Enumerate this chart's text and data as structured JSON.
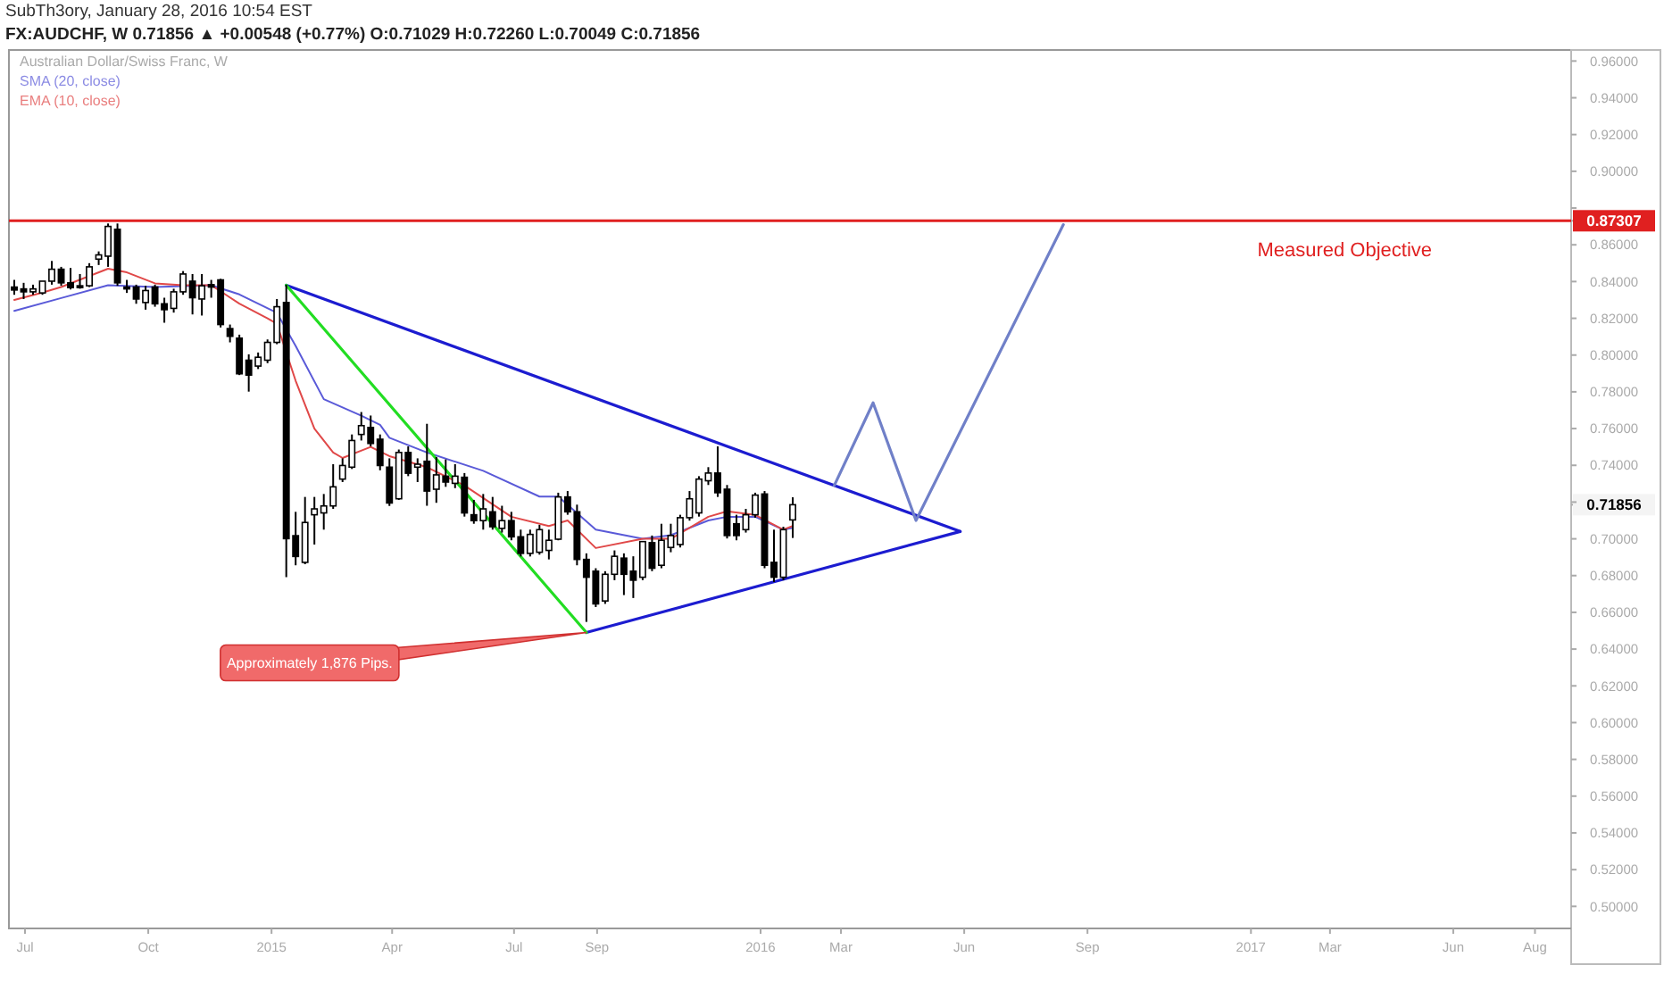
{
  "chart_data": {
    "type": "candlestick",
    "title": "SubTh3ory, January 28, 2016 10:54 EST",
    "subtitle": "FX:AUDCHF, W 0.71856 ▲ +0.00548 (+0.77%) O:0.71029 H:0.72260 L:0.70049 C:0.71856",
    "legend_title": "Australian Dollar/Swiss Franc, W",
    "legend": "top left",
    "grid": false,
    "line_style": "solid",
    "x": [
      "2014-06-23",
      "2014-06-30",
      "2014-07-07",
      "2014-07-14",
      "2014-07-21",
      "2014-07-28",
      "2014-08-04",
      "2014-08-11",
      "2014-08-18",
      "2014-08-25",
      "2014-09-01",
      "2014-09-08",
      "2014-09-15",
      "2014-09-22",
      "2014-09-29",
      "2014-10-06",
      "2014-10-13",
      "2014-10-20",
      "2014-10-27",
      "2014-11-03",
      "2014-11-10",
      "2014-11-17",
      "2014-11-24",
      "2014-12-01",
      "2014-12-08",
      "2014-12-15",
      "2014-12-22",
      "2014-12-29",
      "2015-01-05",
      "2015-01-12",
      "2015-01-19",
      "2015-01-26",
      "2015-02-02",
      "2015-02-09",
      "2015-02-16",
      "2015-02-23",
      "2015-03-02",
      "2015-03-09",
      "2015-03-16",
      "2015-03-23",
      "2015-03-30",
      "2015-04-06",
      "2015-04-13",
      "2015-04-20",
      "2015-04-27",
      "2015-05-04",
      "2015-05-11",
      "2015-05-18",
      "2015-05-25",
      "2015-06-01",
      "2015-06-08",
      "2015-06-15",
      "2015-06-22",
      "2015-06-29",
      "2015-07-06",
      "2015-07-13",
      "2015-07-20",
      "2015-07-27",
      "2015-08-03",
      "2015-08-10",
      "2015-08-17",
      "2015-08-24",
      "2015-08-31",
      "2015-09-07",
      "2015-09-14",
      "2015-09-21",
      "2015-09-28",
      "2015-10-05",
      "2015-10-12",
      "2015-10-19",
      "2015-10-26",
      "2015-11-02",
      "2015-11-09",
      "2015-11-16",
      "2015-11-23",
      "2015-11-30",
      "2015-12-07",
      "2015-12-14",
      "2015-12-21",
      "2015-12-28",
      "2016-01-04",
      "2016-01-11",
      "2016-01-18",
      "2016-01-25"
    ],
    "ohlc": [
      [
        0.837,
        0.8409,
        0.8328,
        0.8354
      ],
      [
        0.836,
        0.8393,
        0.8305,
        0.8344
      ],
      [
        0.8344,
        0.8383,
        0.8328,
        0.836
      ],
      [
        0.8338,
        0.8402,
        0.8328,
        0.8402
      ],
      [
        0.8402,
        0.8512,
        0.8383,
        0.8467
      ],
      [
        0.8467,
        0.848,
        0.8377,
        0.8393
      ],
      [
        0.8393,
        0.8474,
        0.8357,
        0.8367
      ],
      [
        0.8377,
        0.8441,
        0.8361,
        0.8367
      ],
      [
        0.8377,
        0.85,
        0.837,
        0.848
      ],
      [
        0.8522,
        0.8564,
        0.849,
        0.8545
      ],
      [
        0.8538,
        0.8716,
        0.848,
        0.87
      ],
      [
        0.8684,
        0.8716,
        0.8377,
        0.8393
      ],
      [
        0.837,
        0.8409,
        0.8338,
        0.836
      ],
      [
        0.837,
        0.8383,
        0.8279,
        0.8305
      ],
      [
        0.8286,
        0.8377,
        0.8247,
        0.8351
      ],
      [
        0.837,
        0.8383,
        0.8263,
        0.8279
      ],
      [
        0.8279,
        0.8312,
        0.8176,
        0.8247
      ],
      [
        0.8254,
        0.8361,
        0.8231,
        0.8344
      ],
      [
        0.8344,
        0.8457,
        0.8328,
        0.8441
      ],
      [
        0.8402,
        0.8441,
        0.8221,
        0.8312
      ],
      [
        0.8305,
        0.8441,
        0.8215,
        0.8377
      ],
      [
        0.8383,
        0.8409,
        0.8312,
        0.837
      ],
      [
        0.8409,
        0.8415,
        0.815,
        0.8166
      ],
      [
        0.8144,
        0.8166,
        0.8069,
        0.8102
      ],
      [
        0.8092,
        0.8111,
        0.7891,
        0.7898
      ],
      [
        0.7972,
        0.8004,
        0.7801,
        0.7891
      ],
      [
        0.794,
        0.8014,
        0.7924,
        0.7988
      ],
      [
        0.7972,
        0.8085,
        0.7956,
        0.8069
      ],
      [
        0.8069,
        0.8305,
        0.8059,
        0.8263
      ],
      [
        0.8286,
        0.8383,
        0.6791,
        0.7001
      ],
      [
        0.7017,
        0.7147,
        0.6856,
        0.6904
      ],
      [
        0.6872,
        0.7228,
        0.6862,
        0.7089
      ],
      [
        0.7131,
        0.7228,
        0.6969,
        0.7163
      ],
      [
        0.7141,
        0.7244,
        0.705,
        0.7179
      ],
      [
        0.7179,
        0.7406,
        0.7163,
        0.7283
      ],
      [
        0.7325,
        0.7438,
        0.7309,
        0.7399
      ],
      [
        0.739,
        0.7568,
        0.738,
        0.7535
      ],
      [
        0.7568,
        0.769,
        0.7535,
        0.7616
      ],
      [
        0.7606,
        0.7671,
        0.7503,
        0.7519
      ],
      [
        0.7542,
        0.7568,
        0.7373,
        0.7399
      ],
      [
        0.739,
        0.7438,
        0.7179,
        0.7195
      ],
      [
        0.7218,
        0.7486,
        0.7212,
        0.747
      ],
      [
        0.747,
        0.7503,
        0.7341,
        0.7357
      ],
      [
        0.739,
        0.7438,
        0.7309,
        0.7406
      ],
      [
        0.7422,
        0.7626,
        0.718,
        0.726
      ],
      [
        0.727,
        0.7445,
        0.7196,
        0.7348
      ],
      [
        0.7341,
        0.7432,
        0.7283,
        0.7309
      ],
      [
        0.7302,
        0.7406,
        0.7276,
        0.7341
      ],
      [
        0.7335,
        0.7358,
        0.7121,
        0.7141
      ],
      [
        0.7131,
        0.7212,
        0.7082,
        0.7099
      ],
      [
        0.7099,
        0.7244,
        0.705,
        0.7163
      ],
      [
        0.7147,
        0.7228,
        0.705,
        0.7066
      ],
      [
        0.7057,
        0.718,
        0.7034,
        0.7099
      ],
      [
        0.7099,
        0.7147,
        0.6992,
        0.7011
      ],
      [
        0.7011,
        0.705,
        0.6904,
        0.6921
      ],
      [
        0.6921,
        0.705,
        0.6904,
        0.7024
      ],
      [
        0.6927,
        0.7076,
        0.6914,
        0.705
      ],
      [
        0.6937,
        0.705,
        0.6888,
        0.6992
      ],
      [
        0.6998,
        0.7251,
        0.6992,
        0.7228
      ],
      [
        0.7228,
        0.726,
        0.7131,
        0.7147
      ],
      [
        0.7147,
        0.7186,
        0.6856,
        0.6888
      ],
      [
        0.6888,
        0.6921,
        0.6548,
        0.6791
      ],
      [
        0.6824,
        0.684,
        0.6629,
        0.6646
      ],
      [
        0.6662,
        0.6824,
        0.6646,
        0.6807
      ],
      [
        0.6807,
        0.6937,
        0.6775,
        0.6905
      ],
      [
        0.6895,
        0.6921,
        0.6694,
        0.6807
      ],
      [
        0.6824,
        0.6905,
        0.6678,
        0.6775
      ],
      [
        0.6791,
        0.6985,
        0.6775,
        0.6985
      ],
      [
        0.6979,
        0.7018,
        0.6824,
        0.684
      ],
      [
        0.6856,
        0.7082,
        0.684,
        0.6992
      ],
      [
        0.6953,
        0.7082,
        0.6927,
        0.7018
      ],
      [
        0.6969,
        0.7131,
        0.6953,
        0.7115
      ],
      [
        0.7115,
        0.726,
        0.7099,
        0.7218
      ],
      [
        0.7141,
        0.7341,
        0.7121,
        0.7325
      ],
      [
        0.7316,
        0.739,
        0.7293,
        0.7358
      ],
      [
        0.7358,
        0.7503,
        0.7228,
        0.7251
      ],
      [
        0.727,
        0.7293,
        0.7002,
        0.7018
      ],
      [
        0.7082,
        0.7131,
        0.6992,
        0.7018
      ],
      [
        0.705,
        0.7163,
        0.7034,
        0.7131
      ],
      [
        0.7131,
        0.7251,
        0.7115,
        0.7238
      ],
      [
        0.7244,
        0.726,
        0.684,
        0.6856
      ],
      [
        0.6872,
        0.705,
        0.6765,
        0.6791
      ],
      [
        0.6791,
        0.7066,
        0.6775,
        0.705
      ],
      [
        0.71029,
        0.7226,
        0.70049,
        0.71856
      ]
    ],
    "series": [
      {
        "type": "line",
        "name": "SMA (20, close)",
        "color": "#5a5ad8",
        "x": [
          "2014-06-23",
          "2014-07-28",
          "2014-09-01",
          "2014-10-06",
          "2014-11-17",
          "2014-12-08",
          "2015-01-05",
          "2015-01-19",
          "2015-02-09",
          "2015-03-09",
          "2015-03-23",
          "2015-03-30",
          "2015-04-27",
          "2015-06-08",
          "2015-07-20",
          "2015-08-03",
          "2015-08-31",
          "2015-10-05",
          "2015-10-26",
          "2015-11-23",
          "2015-12-07",
          "2015-12-28",
          "2016-01-18",
          "2016-01-25"
        ],
        "values": [
          0.824,
          0.831,
          0.838,
          0.837,
          0.838,
          0.833,
          0.823,
          0.805,
          0.776,
          0.767,
          0.762,
          0.755,
          0.747,
          0.737,
          0.723,
          0.723,
          0.705,
          0.7,
          0.702,
          0.71,
          0.712,
          0.712,
          0.705,
          0.706
        ]
      },
      {
        "type": "line",
        "name": "EMA (10, close)",
        "color": "#e04848",
        "x": [
          "2014-06-23",
          "2014-07-14",
          "2014-07-28",
          "2014-09-01",
          "2014-09-15",
          "2014-10-06",
          "2014-10-27",
          "2014-11-17",
          "2014-12-08",
          "2014-12-29",
          "2015-01-05",
          "2015-01-19",
          "2015-02-02",
          "2015-02-16",
          "2015-02-23",
          "2015-03-16",
          "2015-03-30",
          "2015-04-27",
          "2015-05-25",
          "2015-06-29",
          "2015-07-27",
          "2015-08-10",
          "2015-08-31",
          "2015-10-05",
          "2015-10-26",
          "2015-11-23",
          "2015-12-07",
          "2015-12-28",
          "2016-01-18",
          "2016-01-25"
        ],
        "values": [
          0.83,
          0.834,
          0.837,
          0.847,
          0.845,
          0.839,
          0.838,
          0.838,
          0.828,
          0.82,
          0.817,
          0.786,
          0.76,
          0.747,
          0.744,
          0.75,
          0.745,
          0.739,
          0.729,
          0.712,
          0.707,
          0.71,
          0.695,
          0.7,
          0.7,
          0.712,
          0.715,
          0.713,
          0.705,
          0.707
        ]
      },
      {
        "type": "line",
        "color": "#1c1cd0",
        "x": [
          "2015-01-12",
          "2016-05-29"
        ],
        "values": [
          0.838,
          0.704
        ]
      },
      {
        "type": "line",
        "color": "#1c1cd0",
        "x": [
          "2015-08-24",
          "2016-05-29"
        ],
        "values": [
          0.649,
          0.704
        ]
      },
      {
        "type": "line",
        "color": "#22dd22",
        "x": [
          "2015-01-12",
          "2015-08-24"
        ],
        "values": [
          0.838,
          0.649
        ]
      },
      {
        "type": "line",
        "color": "#7080c8",
        "x": [
          "2016-02-25",
          "2016-03-25",
          "2016-04-26",
          "2016-08-14"
        ],
        "values": [
          0.729,
          0.774,
          0.71,
          0.871
        ]
      }
    ],
    "ref_lines": [
      {
        "axis": "y",
        "value": 0.87307,
        "label": "Measured Objective",
        "color": "#e02020"
      }
    ],
    "annotations": [
      {
        "text": "Approximately 1,876 Pips.",
        "x": "2015-08-24",
        "y": 0.649
      }
    ],
    "xlim": [
      "2014-06-19",
      "2017-08-28"
    ],
    "xticks": [
      {
        "value": "2014-07-01",
        "label": "Jul"
      },
      {
        "value": "2014-10-01",
        "label": "Oct"
      },
      {
        "value": "2015-01-01",
        "label": "2015"
      },
      {
        "value": "2015-04-01",
        "label": "Apr"
      },
      {
        "value": "2015-07-01",
        "label": "Jul"
      },
      {
        "value": "2015-09-01",
        "label": "Sep"
      },
      {
        "value": "2016-01-01",
        "label": "2016"
      },
      {
        "value": "2016-03-01",
        "label": "Mar"
      },
      {
        "value": "2016-06-01",
        "label": "Jun"
      },
      {
        "value": "2016-09-01",
        "label": "Sep"
      },
      {
        "value": "2017-01-01",
        "label": "2017"
      },
      {
        "value": "2017-03-01",
        "label": "Mar"
      },
      {
        "value": "2017-06-01",
        "label": "Jun"
      },
      {
        "value": "2017-08-01",
        "label": "Aug"
      }
    ],
    "ylim": [
      0.488,
      0.966
    ],
    "yticks": [
      {
        "value": 0.5,
        "label": "0.50000"
      },
      {
        "value": 0.52,
        "label": "0.52000"
      },
      {
        "value": 0.54,
        "label": "0.54000"
      },
      {
        "value": 0.56,
        "label": "0.56000"
      },
      {
        "value": 0.58,
        "label": "0.58000"
      },
      {
        "value": 0.6,
        "label": "0.60000"
      },
      {
        "value": 0.62,
        "label": "0.62000"
      },
      {
        "value": 0.64,
        "label": "0.64000"
      },
      {
        "value": 0.66,
        "label": "0.66000"
      },
      {
        "value": 0.68,
        "label": "0.68000"
      },
      {
        "value": 0.7,
        "label": "0.70000"
      },
      {
        "value": 0.71856,
        "label": "0.71856"
      },
      {
        "value": 0.72,
        "label": null
      },
      {
        "value": 0.74,
        "label": "0.74000"
      },
      {
        "value": 0.76,
        "label": "0.76000"
      },
      {
        "value": 0.78,
        "label": "0.78000"
      },
      {
        "value": 0.8,
        "label": "0.80000"
      },
      {
        "value": 0.82,
        "label": "0.82000"
      },
      {
        "value": 0.84,
        "label": "0.84000"
      },
      {
        "value": 0.86,
        "label": "0.86000"
      },
      {
        "value": 0.87307,
        "label": "0.87307"
      },
      {
        "value": 0.88,
        "label": null
      },
      {
        "value": 0.9,
        "label": "0.90000"
      },
      {
        "value": 0.92,
        "label": "0.92000"
      },
      {
        "value": 0.94,
        "label": "0.94000"
      },
      {
        "value": 0.96,
        "label": "0.96000"
      }
    ]
  }
}
